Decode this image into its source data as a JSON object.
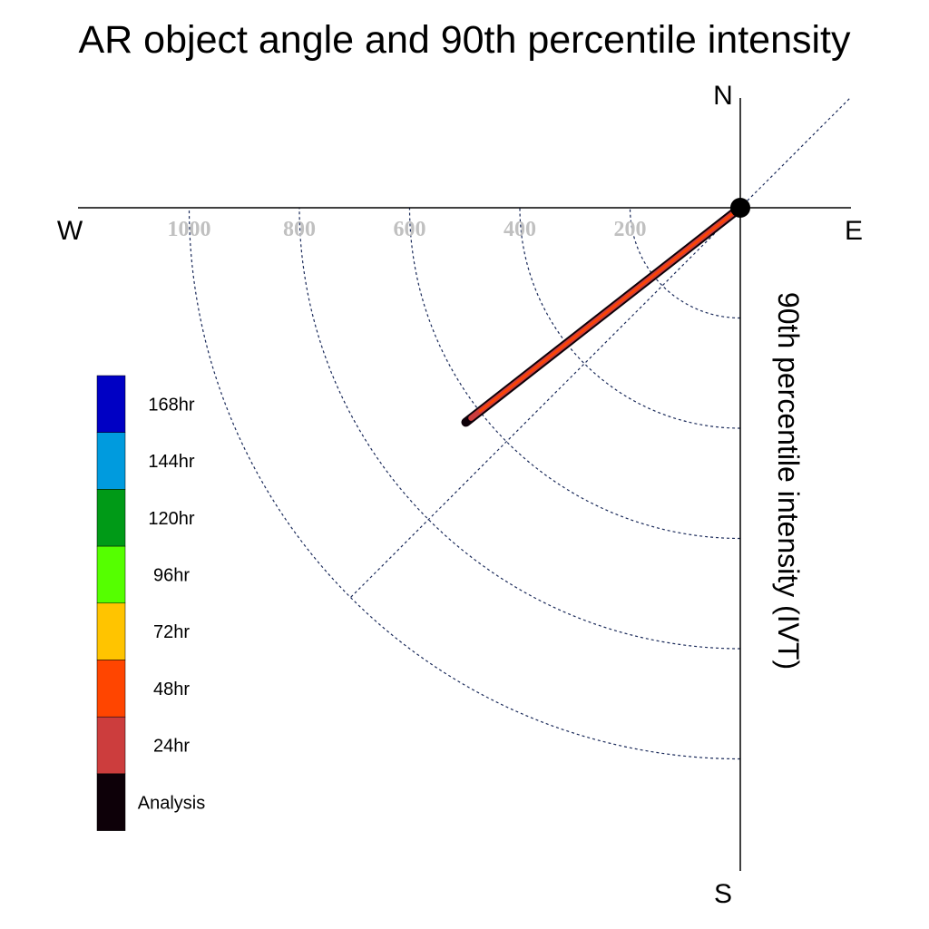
{
  "chart_data": {
    "type": "polar-track",
    "title": "AR object angle and 90th percentile intensity",
    "ylabel": "90th percentile intensity (IVT)",
    "compass": {
      "north": "N",
      "south": "S",
      "east": "E",
      "west": "W"
    },
    "radial_ticks": [
      200,
      400,
      600,
      800,
      1000
    ],
    "radial_max": 1200,
    "legend": {
      "placement": "left",
      "entries": [
        {
          "label": "168hr",
          "color": "#0000c4"
        },
        {
          "label": "144hr",
          "color": "#009bde"
        },
        {
          "label": "120hr",
          "color": "#009a17"
        },
        {
          "label": "96hr",
          "color": "#55ff00"
        },
        {
          "label": "72hr",
          "color": "#ffc400"
        },
        {
          "label": "48hr",
          "color": "#ff4500"
        },
        {
          "label": "24hr",
          "color": "#cc3d3d"
        },
        {
          "label": "Analysis",
          "color": "#0d0008"
        }
      ]
    },
    "series": [
      {
        "name": "Analysis",
        "color": "#0d0008",
        "angle_deg": 232,
        "intensity": 632
      },
      {
        "name": "24hr",
        "color": "#cc3d3d",
        "angle_deg": 232,
        "intensity": 620
      },
      {
        "name": "48hr",
        "color": "#ff4500",
        "angle_deg": 232,
        "intensity": 600
      }
    ]
  }
}
